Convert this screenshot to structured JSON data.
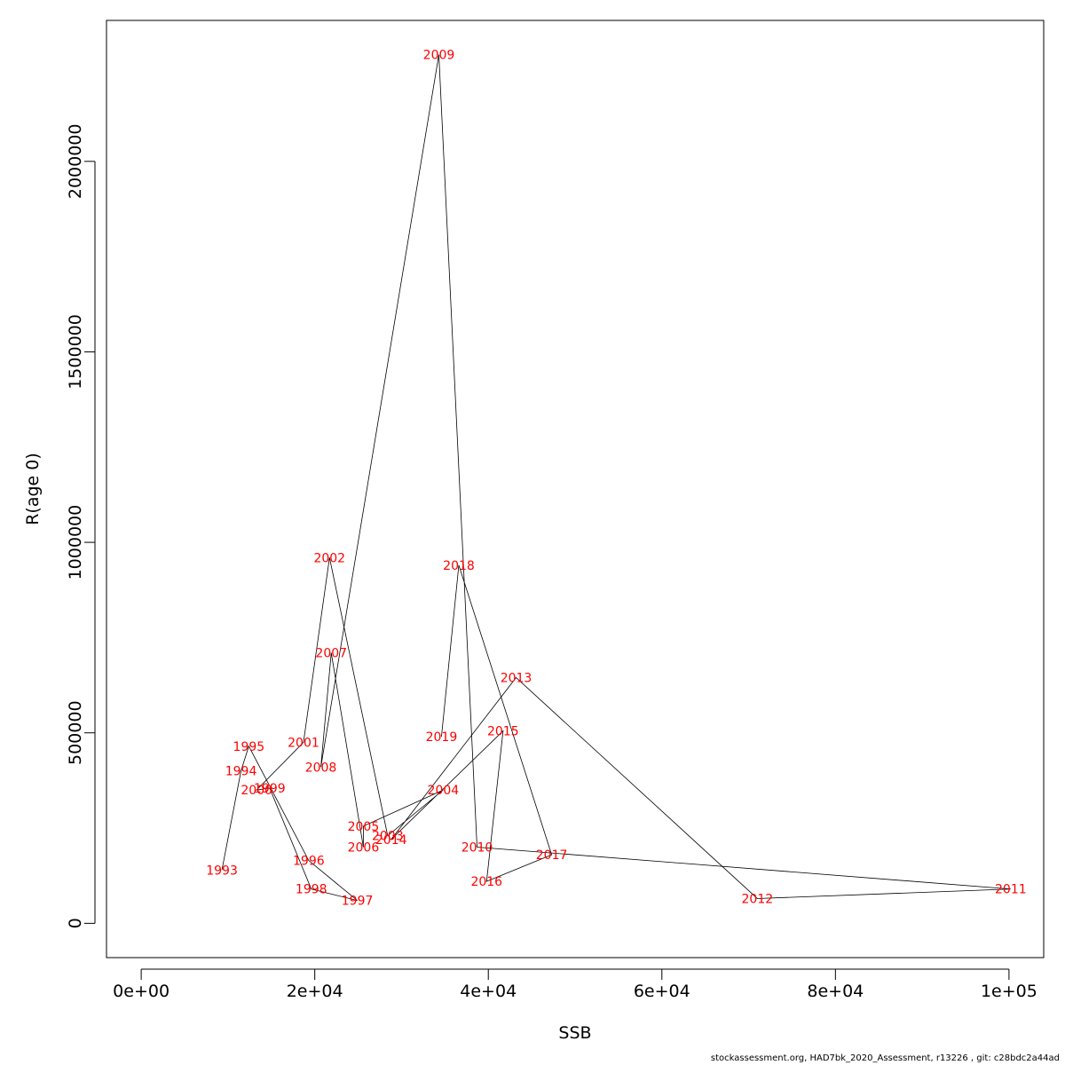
{
  "chart_data": {
    "type": "line",
    "title": "",
    "xlabel": "SSB",
    "ylabel": "R(age 0)",
    "xlim": [
      -4000,
      104000
    ],
    "ylim": [
      -90000,
      2370000
    ],
    "xticks": [
      0,
      20000,
      40000,
      60000,
      80000,
      100000
    ],
    "xtick_labels": [
      "0e+00",
      "2e+04",
      "4e+04",
      "6e+04",
      "8e+04",
      "1e+05"
    ],
    "yticks": [
      0,
      500000,
      1000000,
      1500000,
      2000000
    ],
    "ytick_labels": [
      "0",
      "500000",
      "1000000",
      "1500000",
      "2000000"
    ],
    "grid": false,
    "point_label_color": "#ff0000",
    "line_color": "#000000",
    "series": [
      {
        "points": [
          {
            "label": "1993",
            "x": 9300,
            "y": 140000
          },
          {
            "label": "1994",
            "x": 11500,
            "y": 400000
          },
          {
            "label": "1995",
            "x": 12400,
            "y": 465000
          },
          {
            "label": "1996",
            "x": 19300,
            "y": 165000
          },
          {
            "label": "1997",
            "x": 24900,
            "y": 60000
          },
          {
            "label": "1998",
            "x": 19600,
            "y": 90000
          },
          {
            "label": "1999",
            "x": 14800,
            "y": 355000
          },
          {
            "label": "2000",
            "x": 13300,
            "y": 350000
          },
          {
            "label": "2001",
            "x": 18700,
            "y": 475000
          },
          {
            "label": "2002",
            "x": 21700,
            "y": 960000
          },
          {
            "label": "2003",
            "x": 28400,
            "y": 230000
          },
          {
            "label": "2004",
            "x": 34800,
            "y": 350000
          },
          {
            "label": "2005",
            "x": 25600,
            "y": 255000
          },
          {
            "label": "2006",
            "x": 25600,
            "y": 200000
          },
          {
            "label": "2007",
            "x": 21900,
            "y": 710000
          },
          {
            "label": "2008",
            "x": 20700,
            "y": 410000
          },
          {
            "label": "2009",
            "x": 34300,
            "y": 2280000
          },
          {
            "label": "2010",
            "x": 38700,
            "y": 200000
          },
          {
            "label": "2011",
            "x": 100200,
            "y": 90000
          },
          {
            "label": "2012",
            "x": 71000,
            "y": 65000
          },
          {
            "label": "2013",
            "x": 43200,
            "y": 645000
          },
          {
            "label": "2014",
            "x": 28800,
            "y": 220000
          },
          {
            "label": "2015",
            "x": 41700,
            "y": 505000
          },
          {
            "label": "2016",
            "x": 39800,
            "y": 110000
          },
          {
            "label": "2017",
            "x": 47300,
            "y": 180000
          },
          {
            "label": "2018",
            "x": 36600,
            "y": 940000
          },
          {
            "label": "2019",
            "x": 34600,
            "y": 490000
          }
        ]
      }
    ]
  },
  "footer": "stockassessment.org, HAD7bk_2020_Assessment, r13226 , git: c28bdc2a44ad"
}
